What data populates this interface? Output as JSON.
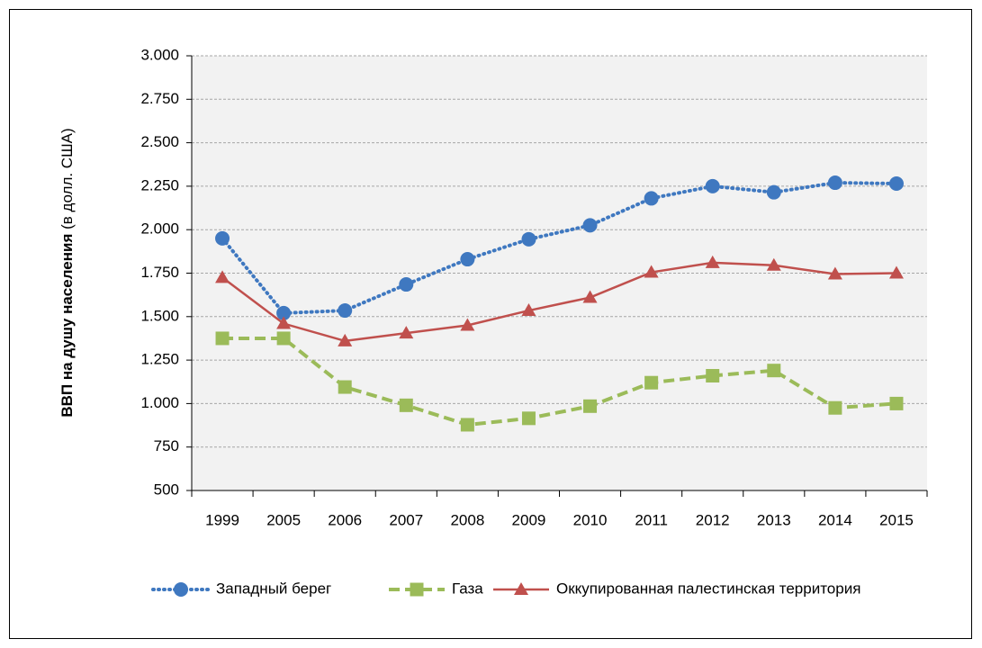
{
  "chart_data": {
    "type": "line",
    "y_label_main": "ВВП на душу населения",
    "y_label_unit": "(в долл. США)",
    "categories": [
      "1999",
      "2005",
      "2006",
      "2007",
      "2008",
      "2009",
      "2010",
      "2011",
      "2012",
      "2013",
      "2014",
      "2015"
    ],
    "series": [
      {
        "name": "Западный берег",
        "color": "#3f78c0",
        "marker": "circle",
        "line_style": "dotted",
        "values": [
          1950,
          1520,
          1535,
          1685,
          1830,
          1945,
          2025,
          2180,
          2250,
          2215,
          2270,
          2265
        ]
      },
      {
        "name": "Газа",
        "color": "#9bbb59",
        "marker": "square",
        "line_style": "dashed",
        "values": [
          1375,
          1375,
          1095,
          990,
          878,
          915,
          985,
          1120,
          1160,
          1190,
          975,
          1000
        ]
      },
      {
        "name": "Оккупированная палестинская территория",
        "color": "#c0504d",
        "marker": "triangle",
        "line_style": "solid",
        "values": [
          1725,
          1460,
          1360,
          1405,
          1450,
          1535,
          1610,
          1755,
          1810,
          1795,
          1745,
          1750
        ]
      }
    ],
    "ylim": [
      500,
      3000
    ],
    "yticks": [
      500,
      750,
      {
        "value": 1000,
        "label": "1.000"
      },
      {
        "value": 1250,
        "label": "1.250"
      },
      {
        "value": 1500,
        "label": "1.500"
      },
      {
        "value": 1750,
        "label": "1.750"
      },
      {
        "value": 2000,
        "label": "2.000"
      },
      {
        "value": 2250,
        "label": "2.250"
      },
      {
        "value": 2500,
        "label": "2.500"
      },
      {
        "value": 2750,
        "label": "2.750"
      },
      {
        "value": 3000,
        "label": "3.000"
      }
    ],
    "grid": true,
    "legend": "bottom"
  }
}
